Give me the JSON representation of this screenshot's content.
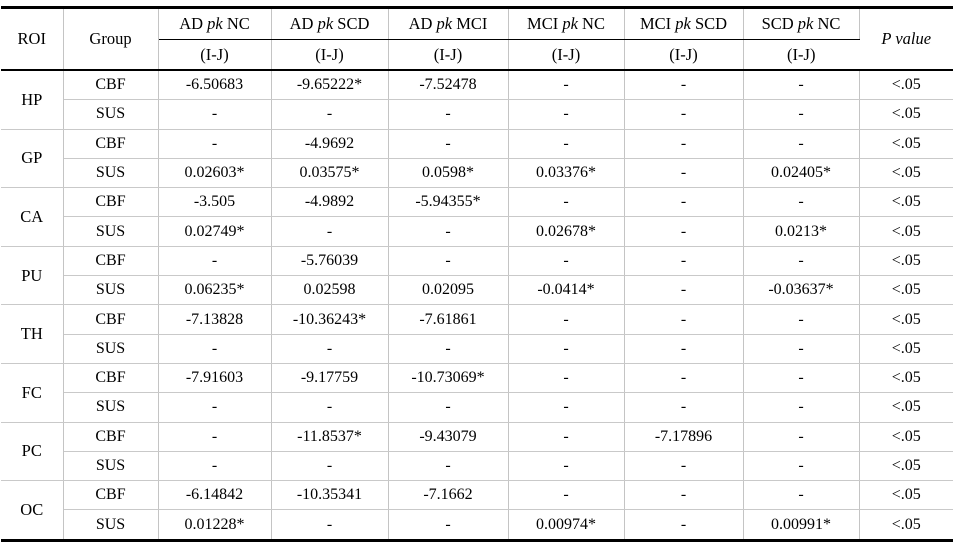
{
  "table": {
    "header": {
      "roi": "ROI",
      "group": "Group",
      "p_value": "P value",
      "comparisons": [
        {
          "pre": "AD",
          "mid": "pk",
          "post": "NC",
          "sub": "(I-J)"
        },
        {
          "pre": "AD",
          "mid": "pk",
          "post": "SCD",
          "sub": "(I-J)"
        },
        {
          "pre": "AD",
          "mid": "pk",
          "post": "MCI",
          "sub": "(I-J)"
        },
        {
          "pre": "MCI",
          "mid": "pk",
          "post": "NC",
          "sub": "(I-J)"
        },
        {
          "pre": "MCI",
          "mid": "pk",
          "post": "SCD",
          "sub": "(I-J)"
        },
        {
          "pre": "SCD",
          "mid": "pk",
          "post": "NC",
          "sub": "(I-J)"
        }
      ]
    },
    "roi_groups": [
      {
        "roi": "HP",
        "rows": [
          {
            "group": "CBF",
            "values": [
              "-6.50683",
              "-9.65222*",
              "-7.52478",
              "-",
              "-",
              "-"
            ],
            "p": "<.05"
          },
          {
            "group": "SUS",
            "values": [
              "-",
              "-",
              "-",
              "-",
              "-",
              "-"
            ],
            "p": "<.05"
          }
        ]
      },
      {
        "roi": "GP",
        "rows": [
          {
            "group": "CBF",
            "values": [
              "-",
              "-4.9692",
              "-",
              "-",
              "-",
              "-"
            ],
            "p": "<.05"
          },
          {
            "group": "SUS",
            "values": [
              "0.02603*",
              "0.03575*",
              "0.0598*",
              "0.03376*",
              "-",
              "0.02405*"
            ],
            "p": "<.05"
          }
        ]
      },
      {
        "roi": "CA",
        "rows": [
          {
            "group": "CBF",
            "values": [
              "-3.505",
              "-4.9892",
              "-5.94355*",
              "-",
              "-",
              "-"
            ],
            "p": "<.05"
          },
          {
            "group": "SUS",
            "values": [
              "0.02749*",
              "-",
              "-",
              "0.02678*",
              "-",
              "0.0213*"
            ],
            "p": "<.05"
          }
        ]
      },
      {
        "roi": "PU",
        "rows": [
          {
            "group": "CBF",
            "values": [
              "-",
              "-5.76039",
              "-",
              "-",
              "-",
              "-"
            ],
            "p": "<.05"
          },
          {
            "group": "SUS",
            "values": [
              "0.06235*",
              "0.02598",
              "0.02095",
              "-0.0414*",
              "-",
              "-0.03637*"
            ],
            "p": "<.05"
          }
        ]
      },
      {
        "roi": "TH",
        "rows": [
          {
            "group": "CBF",
            "values": [
              "-7.13828",
              "-10.36243*",
              "-7.61861",
              "-",
              "-",
              "-"
            ],
            "p": "<.05"
          },
          {
            "group": "SUS",
            "values": [
              "-",
              "-",
              "-",
              "-",
              "-",
              "-"
            ],
            "p": "<.05"
          }
        ]
      },
      {
        "roi": "FC",
        "rows": [
          {
            "group": "CBF",
            "values": [
              "-7.91603",
              "-9.17759",
              "-10.73069*",
              "-",
              "-",
              "-"
            ],
            "p": "<.05"
          },
          {
            "group": "SUS",
            "values": [
              "-",
              "-",
              "-",
              "-",
              "-",
              "-"
            ],
            "p": "<.05"
          }
        ]
      },
      {
        "roi": "PC",
        "rows": [
          {
            "group": "CBF",
            "values": [
              "-",
              "-11.8537*",
              "-9.43079",
              "-",
              "-7.17896",
              "-"
            ],
            "p": "<.05"
          },
          {
            "group": "SUS",
            "values": [
              "-",
              "-",
              "-",
              "-",
              "-",
              "-"
            ],
            "p": "<.05"
          }
        ]
      },
      {
        "roi": "OC",
        "rows": [
          {
            "group": "CBF",
            "values": [
              "-6.14842",
              "-10.35341",
              "-7.1662",
              "-",
              "-",
              "-"
            ],
            "p": "<.05"
          },
          {
            "group": "SUS",
            "values": [
              "0.01228*",
              "-",
              "-",
              "0.00974*",
              "-",
              "0.00991*"
            ],
            "p": "<.05"
          }
        ]
      }
    ]
  }
}
